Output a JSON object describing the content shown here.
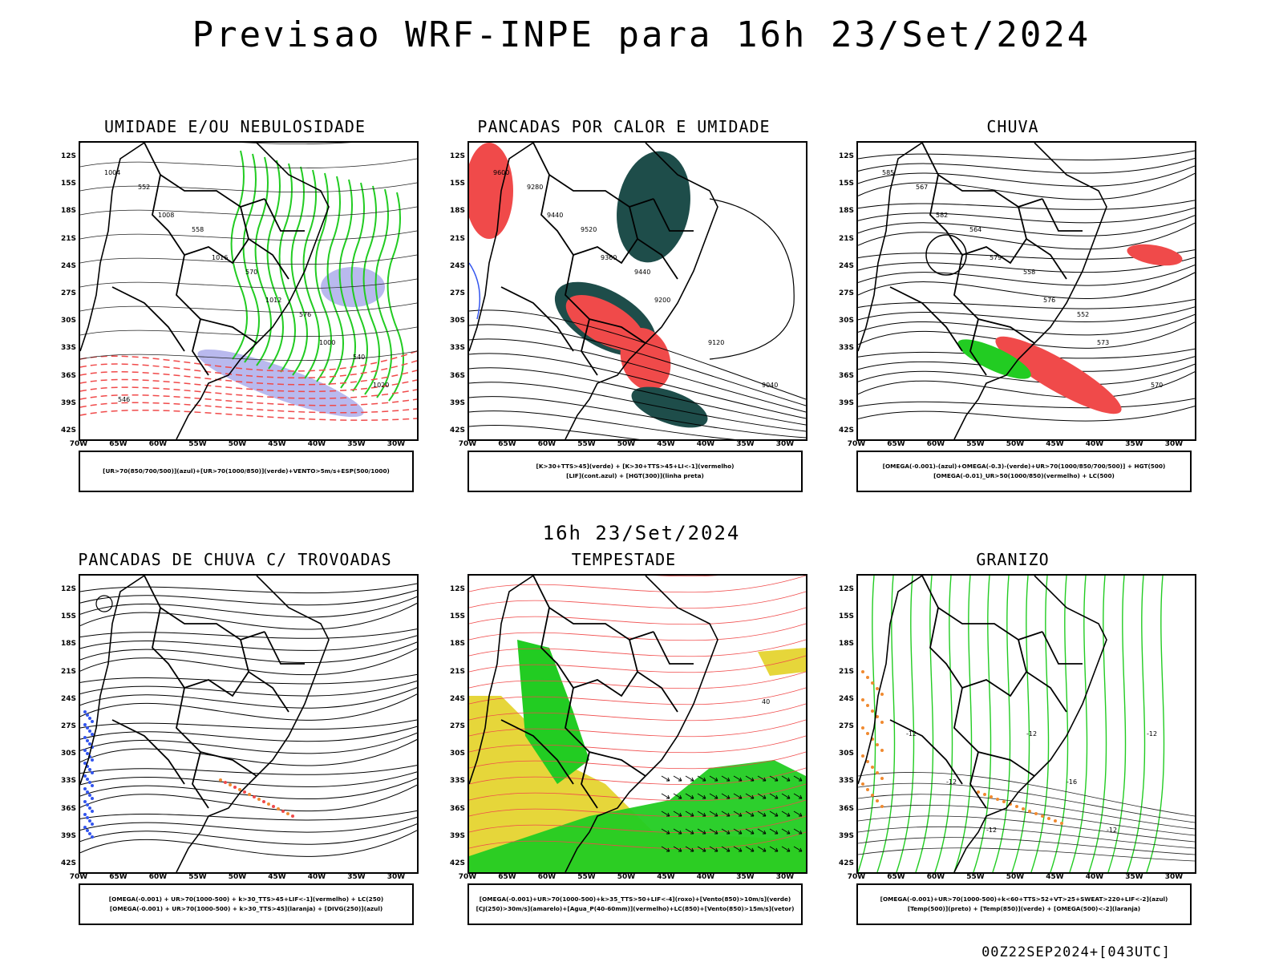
{
  "main_title": "Previsao WRF-INPE  para 16h 23/Set/2024",
  "mid_title": "16h 23/Set/2024",
  "run_info": "00Z22SEP2024+[043UTC]",
  "lat_labels": [
    "12S",
    "15S",
    "18S",
    "21S",
    "24S",
    "27S",
    "30S",
    "33S",
    "36S",
    "39S",
    "42S"
  ],
  "lon_labels": [
    "70W",
    "65W",
    "60W",
    "55W",
    "50W",
    "45W",
    "40W",
    "35W",
    "30W"
  ],
  "colors": {
    "red": "#f04a4a",
    "green": "#22cc22",
    "blue": "#3355ee",
    "yellow": "#e6d63a",
    "orange": "#f08a30",
    "darkgreen": "#1e4d4a",
    "lavender": "#b9b9ee"
  },
  "panels": [
    {
      "id": "umidade",
      "title": "UMIDADE E/OU NEBULOSIDADE",
      "caption": [
        "[UR>70(850/700/500)](azul)+[UR>70(1000/850)](verde)+VENTO>5m/s+ESP(500/1000)"
      ],
      "contour_labels": [
        "1004",
        "1008",
        "1016",
        "1012",
        "1000",
        "1020",
        "552",
        "558",
        "570",
        "576",
        "540",
        "546"
      ]
    },
    {
      "id": "pancadas-calor",
      "title": "PANCADAS POR CALOR E UMIDADE",
      "caption": [
        "[K>30+TTS>45](verde) + [K>30+TTS>45+LI<-1](vermelho)",
        "[LIF](cont.azul) + [HGT(300)](linha preta)"
      ],
      "contour_labels": [
        "9600",
        "9440",
        "9360",
        "9200",
        "9120",
        "9040",
        "9280",
        "9520",
        "9440"
      ]
    },
    {
      "id": "chuva",
      "title": "CHUVA",
      "caption": [
        "[OMEGA(-0.001)-(azul)+OMEGA(-0.3)-(verde)+UR>70(1000/850/700/500)] + HGT(500)",
        "[OMEGA(-0.01)_UR>50(1000/850)(vermelho) + LC(500)"
      ],
      "contour_labels": [
        "585",
        "582",
        "579",
        "576",
        "573",
        "570",
        "567",
        "564",
        "558",
        "552"
      ]
    },
    {
      "id": "trovoadas",
      "title": "PANCADAS DE CHUVA C/ TROVOADAS",
      "caption": [
        "[OMEGA(-0.001) + UR>70(1000-500) + k>30_TTS>45+LIF<-1](vermelho) + LC(250)",
        "[OMEGA(-0.001) + UR>70(1000-500) + k>30_TTS>45](laranja) + [DIVG(250)](azul)"
      ],
      "contour_labels": []
    },
    {
      "id": "tempestade",
      "title": "TEMPESTADE",
      "caption": [
        "[OMEGA(-0.001)+UR>70(1000-500)+k>35_TTS>50+LIF<-4](roxo)+[Vento(850)>10m/s](verde)",
        "[CJ(250)>30m/s](amarelo)+[Agua_P(40-60mm)](vermelho)+LC(850)+[Vento(850)>15m/s](vetor)"
      ],
      "contour_labels": [
        "40"
      ]
    },
    {
      "id": "granizo",
      "title": "GRANIZO",
      "caption": [
        "[OMEGA(-0.001)+UR>70(1000-500)+k<60+TTS>52+VT>25+SWEAT>220+LIF<-2](azul)",
        "[Temp(500)](preto) + [Temp(850)](verde) + [OMEGA(500)<-2](laranja)"
      ],
      "contour_labels": [
        "-12",
        "-12",
        "-12",
        "-12",
        "-16",
        "-12",
        "-12"
      ]
    }
  ]
}
